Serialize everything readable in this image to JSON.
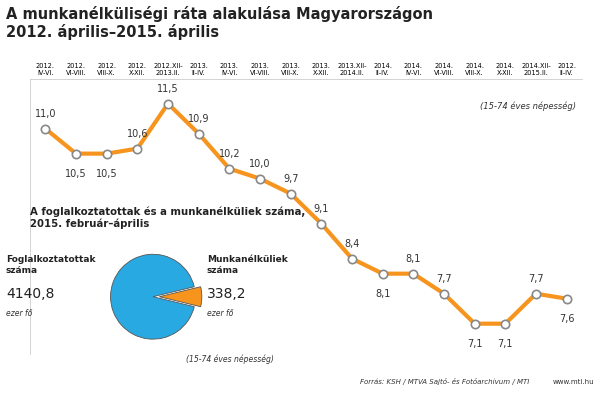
{
  "source": "Forrás: KSH / MTVA Sajtó- és Fotóarchívum / MTI",
  "website": "www.mti.hu",
  "chart_data": [
    {
      "type": "line",
      "title": "A munkanélküliségi ráta alakulása Magyarországon\n2012. április–2015. április",
      "subtitle": "(15-74 éves népesség)",
      "categories": [
        "2012.\nIV-VI.",
        "2012.\nVI-VIII.",
        "2012.\nVIII-X.",
        "2012.\nX-XII.",
        "2012.XII-\n2013.II.",
        "2013.\nII-IV.",
        "2013.\nIV-VI.",
        "2013.\nVI-VIII.",
        "2013.\nVIII-X.",
        "2013.\nX-XII.",
        "2013.XII-\n2014.II.",
        "2014.\nII-IV.",
        "2014.\nIV-VI.",
        "2014.\nVI-VIII.",
        "2014.\nVIII-X.",
        "2014.\nX-XII.",
        "2014.XII-\n2015.II.",
        "2012.\nII-IV."
      ],
      "values": [
        11.0,
        10.5,
        10.5,
        10.6,
        11.5,
        10.9,
        10.2,
        10.0,
        9.7,
        9.1,
        8.4,
        8.1,
        8.1,
        7.7,
        7.1,
        7.1,
        7.7,
        7.6
      ],
      "value_labels": [
        "11,0",
        "10,5",
        "10,5",
        "10,6",
        "11,5",
        "10,9",
        "10,2",
        "10,0",
        "9,7",
        "9,1",
        "8,4",
        "8,1",
        "8,1",
        "7,7",
        "7,1",
        "7,1",
        "7,7",
        "7,6"
      ],
      "color": "#F7941D",
      "marker": "o",
      "data_labels": true,
      "ylim": [
        6.5,
        12
      ],
      "yticks": [],
      "tick_labels": "x"
    },
    {
      "type": "pie",
      "title": "A foglalkoztatottak és a munkanélküliek száma,\n2015. február–április",
      "subtitle": "(15-74 éves népesség)",
      "categories": [
        "Foglalkoztatottak\nszáma",
        "Munkanélküliek\nszáma"
      ],
      "values": [
        4140.8,
        338.2
      ],
      "value_labels": [
        "4140,8",
        "338,2"
      ],
      "unit": "ezer fő",
      "colors": [
        "#29A9E1",
        "#F7941D"
      ],
      "data_labels": true
    }
  ]
}
